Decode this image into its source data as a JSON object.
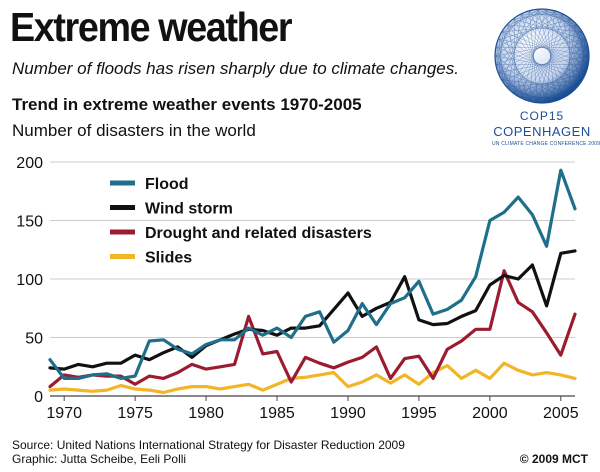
{
  "header": {
    "title": "Extreme weather",
    "subtitle": "Number of floods has risen sharply due to climate changes."
  },
  "logo": {
    "line1": "COP15",
    "line2": "COPENHAGEN",
    "line3": "UN CLIMATE CHANGE CONFERENCE 2009",
    "color": "#1c4e95"
  },
  "footer": {
    "source": "Source: United Nations International Strategy for Disaster Reduction 2009",
    "credit": "Graphic: Jutta Scheibe, Eeli Polli",
    "copyright": "© 2009 MCT"
  },
  "chart_data": {
    "type": "line",
    "title": "Trend in extreme weather events 1970-2005",
    "ylabel": "Number of disasters in the world",
    "xlabel": "",
    "xlim": [
      1969,
      2006
    ],
    "ylim": [
      0,
      200
    ],
    "yticks": [
      0,
      50,
      100,
      150,
      200
    ],
    "xticks": [
      1970,
      1975,
      1980,
      1985,
      1990,
      1995,
      2000,
      2005
    ],
    "grid": true,
    "legend_position": "top-left",
    "x": [
      1969,
      1970,
      1971,
      1972,
      1973,
      1974,
      1975,
      1976,
      1977,
      1978,
      1979,
      1980,
      1981,
      1982,
      1983,
      1984,
      1985,
      1986,
      1987,
      1988,
      1989,
      1990,
      1991,
      1992,
      1993,
      1994,
      1995,
      1996,
      1997,
      1998,
      1999,
      2000,
      2001,
      2002,
      2003,
      2004,
      2005,
      2006
    ],
    "series": [
      {
        "name": "Flood",
        "color": "#1f6f8b",
        "values": [
          31,
          15,
          15,
          18,
          19,
          15,
          17,
          47,
          48,
          40,
          36,
          44,
          48,
          48,
          58,
          52,
          58,
          50,
          68,
          72,
          46,
          56,
          79,
          61,
          79,
          84,
          98,
          70,
          74,
          82,
          102,
          150,
          157,
          170,
          155,
          128,
          193,
          160
        ]
      },
      {
        "name": "Wind storm",
        "color": "#111111",
        "values": [
          24,
          23,
          27,
          25,
          28,
          28,
          35,
          31,
          37,
          42,
          33,
          43,
          48,
          53,
          57,
          56,
          52,
          58,
          58,
          60,
          74,
          88,
          68,
          75,
          80,
          102,
          65,
          61,
          62,
          68,
          73,
          95,
          103,
          100,
          112,
          77,
          122,
          124
        ]
      },
      {
        "name": "Drought and related disasters",
        "color": "#9b1b30",
        "values": [
          8,
          18,
          16,
          18,
          17,
          17,
          10,
          17,
          15,
          20,
          27,
          23,
          25,
          27,
          68,
          36,
          38,
          12,
          33,
          28,
          24,
          29,
          33,
          42,
          15,
          32,
          34,
          15,
          40,
          47,
          57,
          57,
          107,
          80,
          72,
          54,
          35,
          70
        ]
      },
      {
        "name": "Slides",
        "color": "#f2b526",
        "values": [
          5,
          6,
          5,
          4,
          5,
          9,
          6,
          5,
          3,
          6,
          8,
          8,
          6,
          8,
          10,
          5,
          10,
          15,
          16,
          18,
          20,
          8,
          12,
          18,
          11,
          18,
          10,
          20,
          26,
          15,
          22,
          15,
          28,
          22,
          18,
          20,
          18,
          15
        ]
      }
    ]
  }
}
